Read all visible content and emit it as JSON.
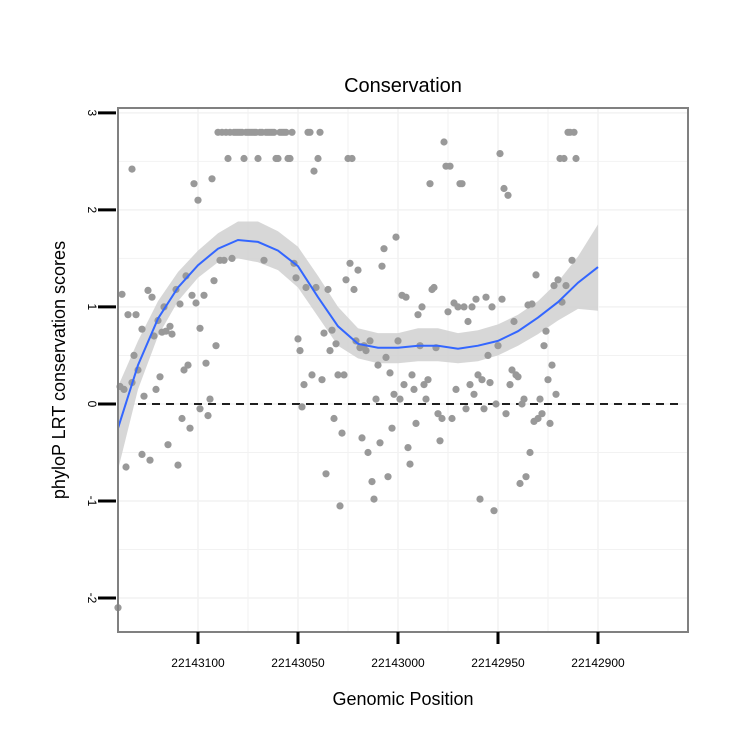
{
  "chart_data": {
    "type": "scatter",
    "title": "Conservation",
    "xlabel": "Genomic Position",
    "ylabel": "phyloP LRT conservation scores",
    "x_reversed": true,
    "xlim": [
      22143140,
      22142855
    ],
    "ylim": [
      -2.35,
      3.05
    ],
    "xticks": [
      22143100,
      22143050,
      22143000,
      22142950,
      22142900
    ],
    "xtick_labels": [
      "22143100",
      "22143050",
      "22143000",
      "22142950",
      "22142900"
    ],
    "yticks": [
      -2,
      -1,
      0,
      1,
      2,
      3
    ],
    "ytick_labels": [
      "-2",
      "-1",
      "0",
      "1",
      "2",
      "3"
    ],
    "grid": true,
    "reference_line": {
      "y": 0,
      "style": "dashed"
    },
    "colors": {
      "points": "#999999",
      "smooth_line": "#3366ff",
      "confidence_band": "#d0d0d0",
      "panel_border": "#808080",
      "grid": "#f2f2f2"
    },
    "points": [
      {
        "x": 22143140,
        "y": -2.1
      },
      {
        "x": 22143139,
        "y": 0.18
      },
      {
        "x": 22143138,
        "y": 1.13
      },
      {
        "x": 22143137,
        "y": 0.15
      },
      {
        "x": 22143136,
        "y": -0.65
      },
      {
        "x": 22143135,
        "y": 0.92
      },
      {
        "x": 22143133,
        "y": 2.42
      },
      {
        "x": 22143133,
        "y": 0.22
      },
      {
        "x": 22143132,
        "y": 0.5
      },
      {
        "x": 22143131,
        "y": 0.92
      },
      {
        "x": 22143130,
        "y": 0.35
      },
      {
        "x": 22143128,
        "y": -0.52
      },
      {
        "x": 22143128,
        "y": 0.77
      },
      {
        "x": 22143127,
        "y": 0.08
      },
      {
        "x": 22143125,
        "y": 1.17
      },
      {
        "x": 22143124,
        "y": -0.58
      },
      {
        "x": 22143123,
        "y": 1.1
      },
      {
        "x": 22143122,
        "y": 0.7
      },
      {
        "x": 22143121,
        "y": 0.15
      },
      {
        "x": 22143120,
        "y": 0.86
      },
      {
        "x": 22143119,
        "y": 0.28
      },
      {
        "x": 22143118,
        "y": 0.74
      },
      {
        "x": 22143117,
        "y": 1.0
      },
      {
        "x": 22143116,
        "y": 0.75
      },
      {
        "x": 22143115,
        "y": -0.42
      },
      {
        "x": 22143114,
        "y": 0.8
      },
      {
        "x": 22143113,
        "y": 0.72
      },
      {
        "x": 22143111,
        "y": 1.18
      },
      {
        "x": 22143110,
        "y": -0.63
      },
      {
        "x": 22143109,
        "y": 1.03
      },
      {
        "x": 22143108,
        "y": -0.15
      },
      {
        "x": 22143107,
        "y": 0.35
      },
      {
        "x": 22143106,
        "y": 1.32
      },
      {
        "x": 22143105,
        "y": 0.4
      },
      {
        "x": 22143104,
        "y": -0.25
      },
      {
        "x": 22143103,
        "y": 1.12
      },
      {
        "x": 22143102,
        "y": 2.27
      },
      {
        "x": 22143101,
        "y": 1.04
      },
      {
        "x": 22143100,
        "y": 2.1
      },
      {
        "x": 22143099,
        "y": -0.05
      },
      {
        "x": 22143099,
        "y": 0.78
      },
      {
        "x": 22143097,
        "y": 1.12
      },
      {
        "x": 22143096,
        "y": 0.42
      },
      {
        "x": 22143095,
        "y": -0.12
      },
      {
        "x": 22143094,
        "y": 0.05
      },
      {
        "x": 22143093,
        "y": 2.32
      },
      {
        "x": 22143092,
        "y": 1.27
      },
      {
        "x": 22143091,
        "y": 0.6
      },
      {
        "x": 22143090,
        "y": 2.8
      },
      {
        "x": 22143089,
        "y": 1.48
      },
      {
        "x": 22143088,
        "y": 2.8
      },
      {
        "x": 22143087,
        "y": 1.48
      },
      {
        "x": 22143086,
        "y": 2.8
      },
      {
        "x": 22143085,
        "y": 2.53
      },
      {
        "x": 22143084,
        "y": 2.8
      },
      {
        "x": 22143083,
        "y": 1.5
      },
      {
        "x": 22143082,
        "y": 2.8
      },
      {
        "x": 22143081,
        "y": 2.8
      },
      {
        "x": 22143080,
        "y": 2.8
      },
      {
        "x": 22143079,
        "y": 2.8
      },
      {
        "x": 22143078,
        "y": 2.8
      },
      {
        "x": 22143077,
        "y": 2.53
      },
      {
        "x": 22143076,
        "y": 2.8
      },
      {
        "x": 22143075,
        "y": 2.8
      },
      {
        "x": 22143074,
        "y": 2.8
      },
      {
        "x": 22143073,
        "y": 2.8
      },
      {
        "x": 22143072,
        "y": 2.8
      },
      {
        "x": 22143071,
        "y": 2.8
      },
      {
        "x": 22143070,
        "y": 2.53
      },
      {
        "x": 22143069,
        "y": 2.8
      },
      {
        "x": 22143068,
        "y": 2.8
      },
      {
        "x": 22143067,
        "y": 1.48
      },
      {
        "x": 22143066,
        "y": 2.8
      },
      {
        "x": 22143065,
        "y": 2.8
      },
      {
        "x": 22143064,
        "y": 2.8
      },
      {
        "x": 22143063,
        "y": 2.8
      },
      {
        "x": 22143062,
        "y": 2.8
      },
      {
        "x": 22143061,
        "y": 2.53
      },
      {
        "x": 22143060,
        "y": 2.53
      },
      {
        "x": 22143059,
        "y": 2.8
      },
      {
        "x": 22143058,
        "y": 2.8
      },
      {
        "x": 22143057,
        "y": 2.8
      },
      {
        "x": 22143056,
        "y": 2.8
      },
      {
        "x": 22143055,
        "y": 2.53
      },
      {
        "x": 22143054,
        "y": 2.53
      },
      {
        "x": 22143053,
        "y": 2.8
      },
      {
        "x": 22143052,
        "y": 1.45
      },
      {
        "x": 22143051,
        "y": 1.3
      },
      {
        "x": 22143050,
        "y": 0.67
      },
      {
        "x": 22143049,
        "y": 0.55
      },
      {
        "x": 22143048,
        "y": -0.03
      },
      {
        "x": 22143047,
        "y": 0.2
      },
      {
        "x": 22143046,
        "y": 1.2
      },
      {
        "x": 22143045,
        "y": 2.8
      },
      {
        "x": 22143044,
        "y": 2.8
      },
      {
        "x": 22143043,
        "y": 0.3
      },
      {
        "x": 22143042,
        "y": 2.4
      },
      {
        "x": 22143041,
        "y": 1.2
      },
      {
        "x": 22143040,
        "y": 2.53
      },
      {
        "x": 22143039,
        "y": 2.8
      },
      {
        "x": 22143038,
        "y": 0.25
      },
      {
        "x": 22143037,
        "y": 0.73
      },
      {
        "x": 22143036,
        "y": -0.72
      },
      {
        "x": 22143035,
        "y": 1.18
      },
      {
        "x": 22143034,
        "y": 0.55
      },
      {
        "x": 22143033,
        "y": 0.76
      },
      {
        "x": 22143032,
        "y": -0.15
      },
      {
        "x": 22143031,
        "y": 0.62
      },
      {
        "x": 22143030,
        "y": 0.3
      },
      {
        "x": 22143029,
        "y": -1.05
      },
      {
        "x": 22143028,
        "y": -0.3
      },
      {
        "x": 22143027,
        "y": 0.3
      },
      {
        "x": 22143026,
        "y": 1.28
      },
      {
        "x": 22143025,
        "y": 2.53
      },
      {
        "x": 22143024,
        "y": 1.45
      },
      {
        "x": 22143023,
        "y": 2.53
      },
      {
        "x": 22143022,
        "y": 1.18
      },
      {
        "x": 22143021,
        "y": 0.65
      },
      {
        "x": 22143020,
        "y": 1.38
      },
      {
        "x": 22143019,
        "y": 0.58
      },
      {
        "x": 22143018,
        "y": -0.35
      },
      {
        "x": 22143017,
        "y": 0.6
      },
      {
        "x": 22143016,
        "y": 0.55
      },
      {
        "x": 22143015,
        "y": -0.5
      },
      {
        "x": 22143014,
        "y": 0.65
      },
      {
        "x": 22143013,
        "y": -0.8
      },
      {
        "x": 22143012,
        "y": -0.98
      },
      {
        "x": 22143011,
        "y": 0.05
      },
      {
        "x": 22143010,
        "y": 0.4
      },
      {
        "x": 22143009,
        "y": -0.4
      },
      {
        "x": 22143008,
        "y": 1.42
      },
      {
        "x": 22143007,
        "y": 1.6
      },
      {
        "x": 22143006,
        "y": 0.48
      },
      {
        "x": 22143005,
        "y": -0.75
      },
      {
        "x": 22143004,
        "y": 0.32
      },
      {
        "x": 22143003,
        "y": -0.25
      },
      {
        "x": 22143002,
        "y": 0.1
      },
      {
        "x": 22143001,
        "y": 1.72
      },
      {
        "x": 22143000,
        "y": 0.65
      },
      {
        "x": 22142999,
        "y": 0.05
      },
      {
        "x": 22142998,
        "y": 1.12
      },
      {
        "x": 22142997,
        "y": 0.2
      },
      {
        "x": 22142996,
        "y": 1.1
      },
      {
        "x": 22142995,
        "y": -0.45
      },
      {
        "x": 22142994,
        "y": -0.62
      },
      {
        "x": 22142993,
        "y": 0.3
      },
      {
        "x": 22142992,
        "y": 0.15
      },
      {
        "x": 22142991,
        "y": -0.2
      },
      {
        "x": 22142990,
        "y": 0.92
      },
      {
        "x": 22142989,
        "y": 0.6
      },
      {
        "x": 22142988,
        "y": 1.0
      },
      {
        "x": 22142987,
        "y": 0.2
      },
      {
        "x": 22142986,
        "y": 0.05
      },
      {
        "x": 22142985,
        "y": 0.25
      },
      {
        "x": 22142984,
        "y": 2.27
      },
      {
        "x": 22142983,
        "y": 1.18
      },
      {
        "x": 22142982,
        "y": 1.2
      },
      {
        "x": 22142981,
        "y": 0.58
      },
      {
        "x": 22142980,
        "y": -0.1
      },
      {
        "x": 22142979,
        "y": -0.38
      },
      {
        "x": 22142978,
        "y": -0.15
      },
      {
        "x": 22142977,
        "y": 2.7
      },
      {
        "x": 22142976,
        "y": 2.45
      },
      {
        "x": 22142975,
        "y": 0.95
      },
      {
        "x": 22142974,
        "y": 2.45
      },
      {
        "x": 22142973,
        "y": -0.15
      },
      {
        "x": 22142972,
        "y": 1.04
      },
      {
        "x": 22142971,
        "y": 0.15
      },
      {
        "x": 22142970,
        "y": 1.0
      },
      {
        "x": 22142969,
        "y": 2.27
      },
      {
        "x": 22142968,
        "y": 2.27
      },
      {
        "x": 22142967,
        "y": 1.0
      },
      {
        "x": 22142966,
        "y": -0.05
      },
      {
        "x": 22142965,
        "y": 0.85
      },
      {
        "x": 22142964,
        "y": 0.2
      },
      {
        "x": 22142963,
        "y": 1.0
      },
      {
        "x": 22142962,
        "y": 0.1
      },
      {
        "x": 22142961,
        "y": 1.08
      },
      {
        "x": 22142960,
        "y": 0.3
      },
      {
        "x": 22142959,
        "y": -0.98
      },
      {
        "x": 22142958,
        "y": 0.25
      },
      {
        "x": 22142957,
        "y": -0.05
      },
      {
        "x": 22142956,
        "y": 1.1
      },
      {
        "x": 22142955,
        "y": 0.5
      },
      {
        "x": 22142954,
        "y": 0.22
      },
      {
        "x": 22142953,
        "y": 1.0
      },
      {
        "x": 22142952,
        "y": -1.1
      },
      {
        "x": 22142951,
        "y": 0.0
      },
      {
        "x": 22142950,
        "y": 0.6
      },
      {
        "x": 22142949,
        "y": 2.58
      },
      {
        "x": 22142948,
        "y": 1.08
      },
      {
        "x": 22142947,
        "y": 2.22
      },
      {
        "x": 22142946,
        "y": -0.1
      },
      {
        "x": 22142945,
        "y": 2.15
      },
      {
        "x": 22142944,
        "y": 0.2
      },
      {
        "x": 22142943,
        "y": 0.35
      },
      {
        "x": 22142942,
        "y": 0.85
      },
      {
        "x": 22142941,
        "y": 0.3
      },
      {
        "x": 22142940,
        "y": 0.28
      },
      {
        "x": 22142939,
        "y": -0.82
      },
      {
        "x": 22142938,
        "y": 0.0
      },
      {
        "x": 22142937,
        "y": 0.05
      },
      {
        "x": 22142936,
        "y": -0.75
      },
      {
        "x": 22142935,
        "y": 1.02
      },
      {
        "x": 22142934,
        "y": -0.5
      },
      {
        "x": 22142933,
        "y": 1.03
      },
      {
        "x": 22142932,
        "y": -0.18
      },
      {
        "x": 22142931,
        "y": 1.33
      },
      {
        "x": 22142930,
        "y": -0.15
      },
      {
        "x": 22142929,
        "y": 0.05
      },
      {
        "x": 22142928,
        "y": -0.1
      },
      {
        "x": 22142927,
        "y": 0.6
      },
      {
        "x": 22142926,
        "y": 0.75
      },
      {
        "x": 22142925,
        "y": 0.25
      },
      {
        "x": 22142924,
        "y": -0.2
      },
      {
        "x": 22142923,
        "y": 0.4
      },
      {
        "x": 22142922,
        "y": 1.22
      },
      {
        "x": 22142921,
        "y": 0.1
      },
      {
        "x": 22142920,
        "y": 1.28
      },
      {
        "x": 22142919,
        "y": 2.53
      },
      {
        "x": 22142918,
        "y": 1.05
      },
      {
        "x": 22142917,
        "y": 2.53
      },
      {
        "x": 22142916,
        "y": 1.22
      },
      {
        "x": 22142915,
        "y": 2.8
      },
      {
        "x": 22142914,
        "y": 2.8
      },
      {
        "x": 22142913,
        "y": 1.48
      },
      {
        "x": 22142912,
        "y": 2.8
      },
      {
        "x": 22142911,
        "y": 2.53
      }
    ],
    "smooth_line": [
      {
        "x": 22143140,
        "y": -0.25,
        "lo": -0.68,
        "hi": 0.18
      },
      {
        "x": 22143130,
        "y": 0.4,
        "lo": 0.15,
        "hi": 0.65
      },
      {
        "x": 22143120,
        "y": 0.88,
        "lo": 0.7,
        "hi": 1.06
      },
      {
        "x": 22143110,
        "y": 1.2,
        "lo": 1.06,
        "hi": 1.36
      },
      {
        "x": 22143100,
        "y": 1.43,
        "lo": 1.3,
        "hi": 1.58
      },
      {
        "x": 22143090,
        "y": 1.6,
        "lo": 1.46,
        "hi": 1.76
      },
      {
        "x": 22143080,
        "y": 1.69,
        "lo": 1.5,
        "hi": 1.88
      },
      {
        "x": 22143070,
        "y": 1.67,
        "lo": 1.46,
        "hi": 1.88
      },
      {
        "x": 22143060,
        "y": 1.58,
        "lo": 1.38,
        "hi": 1.78
      },
      {
        "x": 22143050,
        "y": 1.42,
        "lo": 1.2,
        "hi": 1.62
      },
      {
        "x": 22143040,
        "y": 1.1,
        "lo": 0.9,
        "hi": 1.32
      },
      {
        "x": 22143030,
        "y": 0.8,
        "lo": 0.6,
        "hi": 1.0
      },
      {
        "x": 22143020,
        "y": 0.62,
        "lo": 0.47,
        "hi": 0.78
      },
      {
        "x": 22143010,
        "y": 0.58,
        "lo": 0.42,
        "hi": 0.73
      },
      {
        "x": 22143000,
        "y": 0.58,
        "lo": 0.42,
        "hi": 0.73
      },
      {
        "x": 22142990,
        "y": 0.6,
        "lo": 0.44,
        "hi": 0.78
      },
      {
        "x": 22142980,
        "y": 0.6,
        "lo": 0.44,
        "hi": 0.78
      },
      {
        "x": 22142970,
        "y": 0.57,
        "lo": 0.42,
        "hi": 0.73
      },
      {
        "x": 22142960,
        "y": 0.6,
        "lo": 0.44,
        "hi": 0.76
      },
      {
        "x": 22142950,
        "y": 0.65,
        "lo": 0.5,
        "hi": 0.82
      },
      {
        "x": 22142940,
        "y": 0.75,
        "lo": 0.6,
        "hi": 0.92
      },
      {
        "x": 22142930,
        "y": 0.89,
        "lo": 0.72,
        "hi": 1.06
      },
      {
        "x": 22142920,
        "y": 1.05,
        "lo": 0.86,
        "hi": 1.26
      },
      {
        "x": 22142910,
        "y": 1.25,
        "lo": 0.98,
        "hi": 1.52
      },
      {
        "x": 22142900,
        "y": 1.41,
        "lo": 0.96,
        "hi": 1.85
      }
    ]
  }
}
